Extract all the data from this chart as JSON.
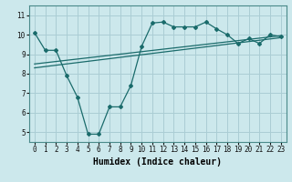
{
  "xlabel": "Humidex (Indice chaleur)",
  "ylabel": "",
  "bg_color": "#cce8ec",
  "grid_color": "#aacdd4",
  "line_color": "#1a6b6b",
  "xlim": [
    -0.5,
    23.5
  ],
  "ylim": [
    4.5,
    11.5
  ],
  "xticks": [
    0,
    1,
    2,
    3,
    4,
    5,
    6,
    7,
    8,
    9,
    10,
    11,
    12,
    13,
    14,
    15,
    16,
    17,
    18,
    19,
    20,
    21,
    22,
    23
  ],
  "yticks": [
    5,
    6,
    7,
    8,
    9,
    10,
    11
  ],
  "line1_x": [
    0,
    1,
    2,
    3,
    4,
    5,
    6,
    7,
    8,
    9,
    10,
    11,
    12,
    13,
    14,
    15,
    16,
    17,
    18,
    19,
    20,
    21,
    22,
    23
  ],
  "line1_y": [
    10.1,
    9.2,
    9.2,
    7.9,
    6.8,
    4.9,
    4.9,
    6.3,
    6.3,
    7.4,
    9.4,
    10.6,
    10.65,
    10.4,
    10.4,
    10.4,
    10.65,
    10.3,
    10.0,
    9.55,
    9.8,
    9.55,
    10.0,
    9.9
  ],
  "line2_x": [
    0,
    23
  ],
  "line2_y": [
    8.3,
    9.85
  ],
  "line3_x": [
    0,
    23
  ],
  "line3_y": [
    8.5,
    9.95
  ],
  "font_family": "monospace",
  "tick_fontsize": 5.5,
  "label_fontsize": 7
}
